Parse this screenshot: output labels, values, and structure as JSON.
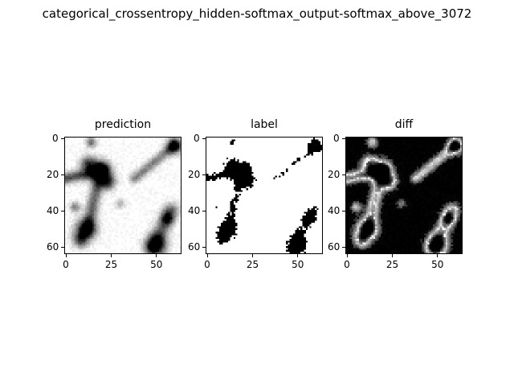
{
  "figure": {
    "suptitle": "categorical_crossentropy_hidden-softmax_output-softmax_above_3072"
  },
  "panels": [
    {
      "title": "prediction",
      "colormap": "inverted-gray"
    },
    {
      "title": "label",
      "colormap": "binary"
    },
    {
      "title": "diff",
      "colormap": "gray"
    }
  ],
  "axis": {
    "x_ticks": [
      "0",
      "25",
      "50"
    ],
    "y_ticks": [
      "0",
      "20",
      "40",
      "60"
    ],
    "extent": [
      64,
      64
    ]
  }
}
